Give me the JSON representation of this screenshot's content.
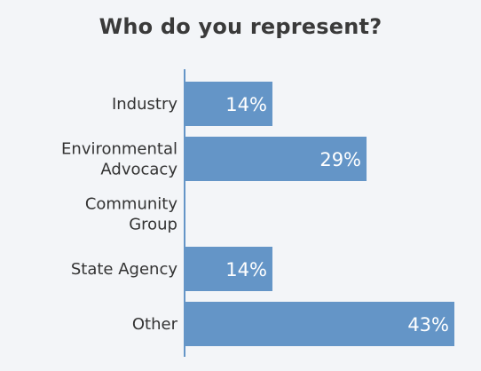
{
  "chart_data": {
    "type": "bar",
    "orientation": "horizontal",
    "title": "Who do you represent?",
    "categories": [
      [
        "Industry"
      ],
      [
        "Environmental",
        "Advocacy"
      ],
      [
        "Community",
        "Group"
      ],
      [
        "State Agency"
      ],
      [
        "Other"
      ]
    ],
    "values": [
      14,
      29,
      0,
      14,
      43
    ],
    "value_labels": [
      "14%",
      "29%",
      "",
      "14%",
      "43%"
    ],
    "xlim": [
      0,
      43
    ],
    "grid": false,
    "bar_color": "#6495c7",
    "axis_color": "#6495c7",
    "background_color": "#f3f5f8"
  }
}
